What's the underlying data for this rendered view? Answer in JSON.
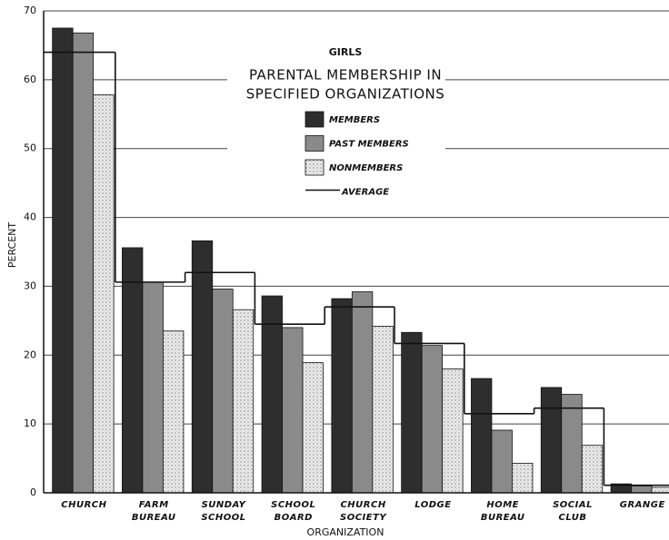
{
  "chart_data": {
    "type": "bar",
    "subtitle": "GIRLS",
    "title": [
      "PARENTAL MEMBERSHIP IN",
      "SPECIFIED ORGANIZATIONS"
    ],
    "y_label": "PERCENT",
    "x_label": "ORGANIZATION",
    "categories": [
      [
        "CHURCH"
      ],
      [
        "FARM",
        "BUREAU"
      ],
      [
        "SUNDAY",
        "SCHOOL"
      ],
      [
        "SCHOOL",
        "BOARD"
      ],
      [
        "CHURCH",
        "SOCIETY"
      ],
      [
        "LODGE"
      ],
      [
        "HOME",
        "BUREAU"
      ],
      [
        "SOCIAL",
        "CLUB"
      ],
      [
        "GRANGE"
      ]
    ],
    "series": [
      {
        "name": "MEMBERS",
        "color": "#2e2e2e",
        "values": [
          67.5,
          35.6,
          36.6,
          28.6,
          28.2,
          23.3,
          16.6,
          15.3,
          1.3
        ]
      },
      {
        "name": "PAST MEMBERS",
        "color": "#8a8a8a",
        "values": [
          66.8,
          30.6,
          29.6,
          24.0,
          29.2,
          21.4,
          9.1,
          14.3,
          1.0
        ]
      },
      {
        "name": "NONMEMBERS",
        "color": "#e8e8e8",
        "pattern": "dots",
        "values": [
          57.8,
          23.5,
          26.6,
          18.9,
          24.2,
          18.0,
          4.3,
          6.9,
          0.8
        ]
      },
      {
        "name": "AVERAGE",
        "color": "#111111",
        "style": "step",
        "values": [
          64,
          30.6,
          32,
          24.5,
          27,
          21.7,
          11.5,
          12.3,
          1.1
        ]
      }
    ],
    "ylim": [
      0,
      70
    ],
    "yticks": [
      0,
      10,
      20,
      30,
      40,
      50,
      60,
      70
    ],
    "grid": true
  }
}
